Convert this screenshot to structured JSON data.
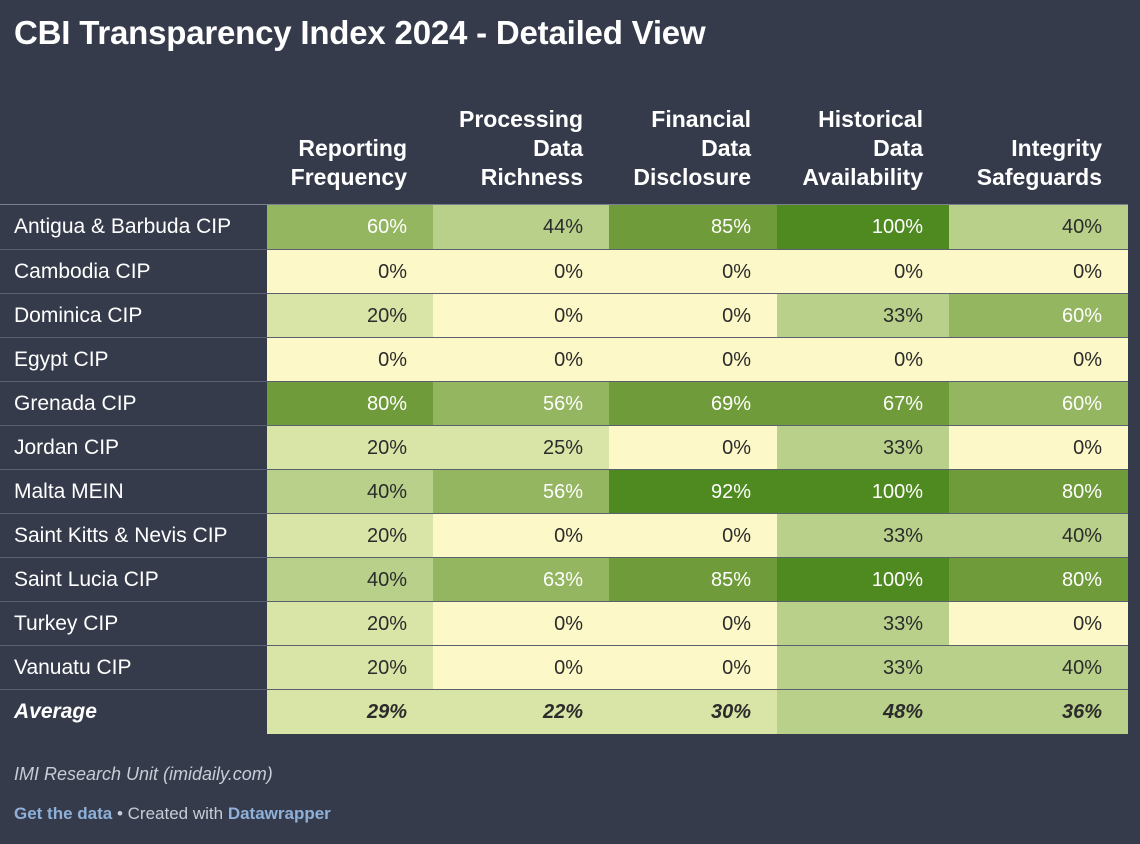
{
  "title": "CBI Transparency Index 2024 - Detailed View",
  "source": "IMI Research Unit (imidaily.com)",
  "footer": {
    "get_data": "Get the data",
    "separator": " • Created with ",
    "datawrapper": "Datawrapper"
  },
  "colors": {
    "background": "#353b4b",
    "scale": [
      "#fcf8c8",
      "#d9e4a7",
      "#b8d08a",
      "#94b660",
      "#6f9b3a",
      "#4e8a20"
    ]
  },
  "chart_data": {
    "type": "table",
    "title": "CBI Transparency Index 2024 - Detailed View",
    "columns": [
      "Reporting\nFrequency",
      "Processing\nData\nRichness",
      "Financial\nData\nDisclosure",
      "Historical\nData\nAvailability",
      "Integrity\nSafeguards"
    ],
    "rows": [
      {
        "label": "Antigua & Barbuda CIP",
        "values": [
          "60%",
          "44%",
          "85%",
          "100%",
          "40%"
        ]
      },
      {
        "label": "Cambodia CIP",
        "values": [
          "0%",
          "0%",
          "0%",
          "0%",
          "0%"
        ]
      },
      {
        "label": "Dominica CIP",
        "values": [
          "20%",
          "0%",
          "0%",
          "33%",
          "60%"
        ]
      },
      {
        "label": "Egypt CIP",
        "values": [
          "0%",
          "0%",
          "0%",
          "0%",
          "0%"
        ]
      },
      {
        "label": "Grenada CIP",
        "values": [
          "80%",
          "56%",
          "69%",
          "67%",
          "60%"
        ]
      },
      {
        "label": "Jordan CIP",
        "values": [
          "20%",
          "25%",
          "0%",
          "33%",
          "0%"
        ]
      },
      {
        "label": "Malta MEIN",
        "values": [
          "40%",
          "56%",
          "92%",
          "100%",
          "80%"
        ]
      },
      {
        "label": "Saint Kitts & Nevis CIP",
        "values": [
          "20%",
          "0%",
          "0%",
          "33%",
          "40%"
        ]
      },
      {
        "label": "Saint Lucia CIP",
        "values": [
          "40%",
          "63%",
          "85%",
          "100%",
          "80%"
        ]
      },
      {
        "label": "Turkey CIP",
        "values": [
          "20%",
          "0%",
          "0%",
          "33%",
          "0%"
        ]
      },
      {
        "label": "Vanuatu CIP",
        "values": [
          "20%",
          "0%",
          "0%",
          "33%",
          "40%"
        ]
      }
    ],
    "average": {
      "label": "Average",
      "values": [
        "29%",
        "22%",
        "30%",
        "48%",
        "36%"
      ]
    }
  }
}
